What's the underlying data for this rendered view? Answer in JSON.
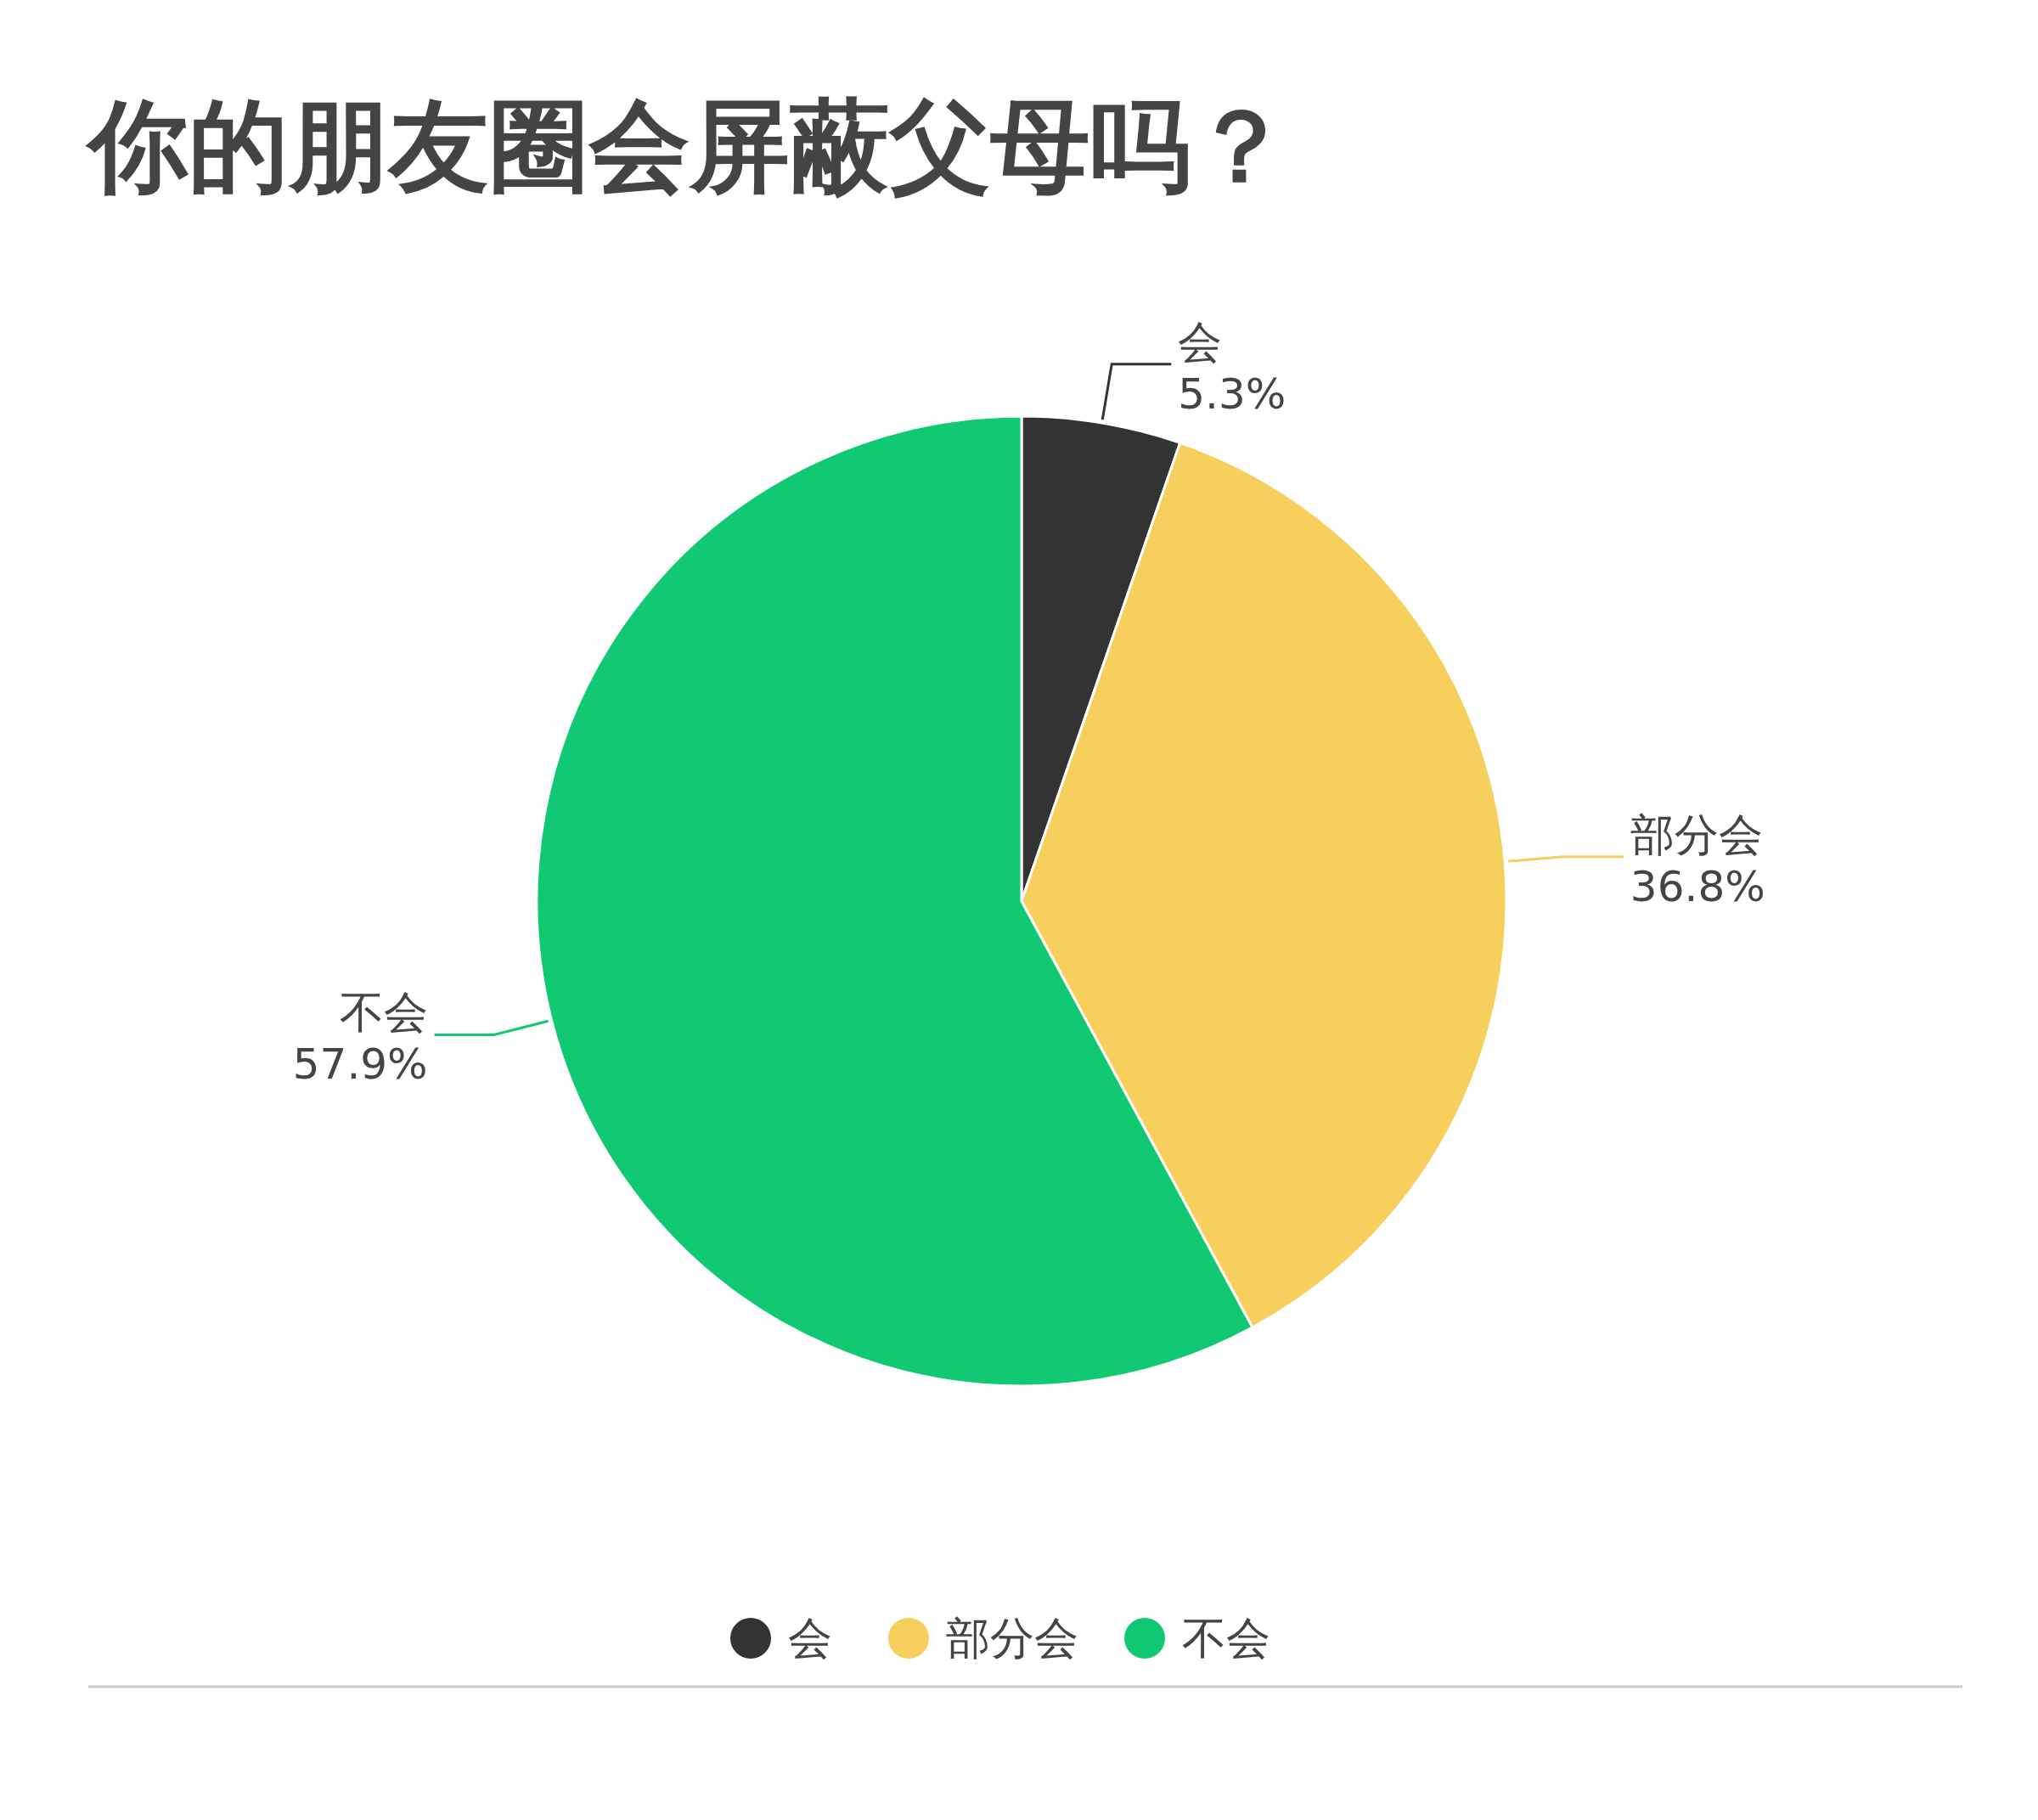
{
  "chart_data": {
    "type": "pie",
    "title": "你的朋友圈会屏蔽父母吗？",
    "categories": [
      "会",
      "部分会",
      "不会"
    ],
    "values": [
      5.3,
      36.8,
      57.9
    ],
    "colors": [
      "#333333",
      "#f7cf5c",
      "#12c973"
    ],
    "value_labels": [
      "5.3%",
      "36.8%",
      "57.9%"
    ],
    "legend": "bottom"
  }
}
